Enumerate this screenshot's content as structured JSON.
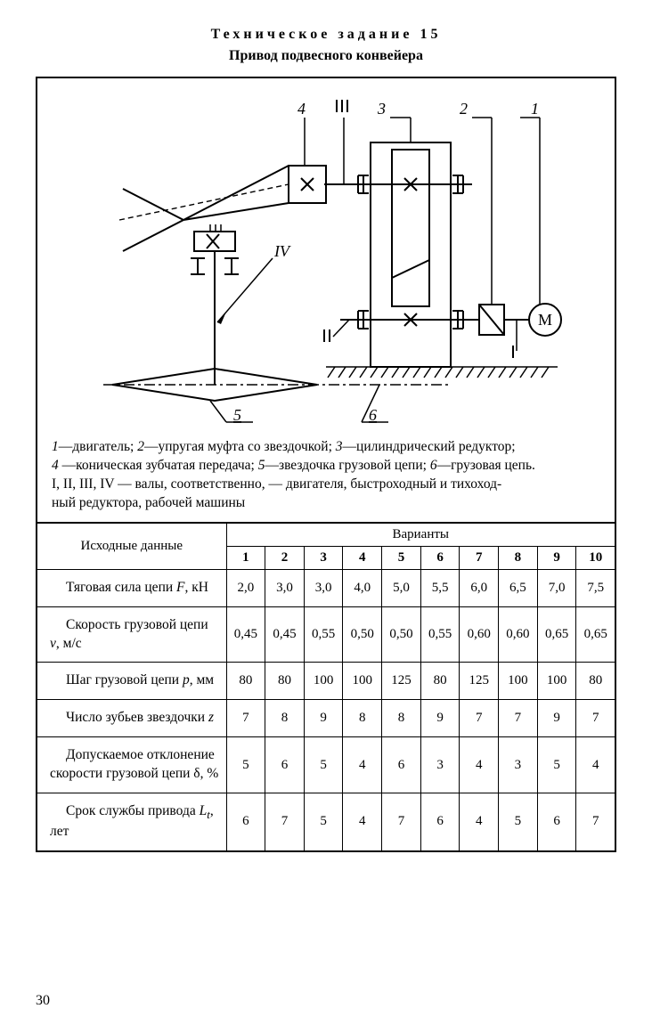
{
  "heading": "Техническое задание 15",
  "subheading": "Привод подвесного конвейера",
  "page_number": "30",
  "diagram": {
    "stroke": "#000000",
    "stroke_width": 2,
    "labels": [
      "1",
      "2",
      "3",
      "4",
      "5",
      "6",
      "I",
      "II",
      "III",
      "IV",
      "М"
    ],
    "hatch_spacing": 8
  },
  "caption": {
    "l1_a": "1",
    "l1_b": "—двигатель; ",
    "l1_c": "2",
    "l1_d": "—упругая муфта со звездочкой; ",
    "l1_e": "3",
    "l1_f": "—цилиндрический редуктор;",
    "l2_a": "4",
    "l2_b": " —коническая зубчатая передача; ",
    "l2_c": "5",
    "l2_d": "—звездочка грузовой цепи; ",
    "l2_e": "6",
    "l2_f": "—грузовая цепь.",
    "l3": "I, II, III, IV — валы, соответственно, — двигателя, быстроходный и тихоход-",
    "l4": "ный редуктора, рабочей машины"
  },
  "table": {
    "row_header_title": "Исходные данные",
    "variants_title": "Варианты",
    "variant_numbers": [
      "1",
      "2",
      "3",
      "4",
      "5",
      "6",
      "7",
      "8",
      "9",
      "10"
    ],
    "rows": [
      {
        "label_html": "<span class=\"indent\"></span>Тяговая сила цепи <i>F</i>, кН",
        "values": [
          "2,0",
          "3,0",
          "3,0",
          "4,0",
          "5,0",
          "5,5",
          "6,0",
          "6,5",
          "7,0",
          "7,5"
        ]
      },
      {
        "label_html": "<span class=\"indent\"></span>Скорость грузовой цепи <i>v</i>, м/с",
        "values": [
          "0,45",
          "0,45",
          "0,55",
          "0,50",
          "0,50",
          "0,55",
          "0,60",
          "0,60",
          "0,65",
          "0,65"
        ]
      },
      {
        "label_html": "<span class=\"indent\"></span>Шаг грузовой цепи <i>p</i>, мм",
        "values": [
          "80",
          "80",
          "100",
          "100",
          "125",
          "80",
          "125",
          "100",
          "100",
          "80"
        ]
      },
      {
        "label_html": "<span class=\"indent\"></span>Число зубьев звездочки <i>z</i>",
        "values": [
          "7",
          "8",
          "9",
          "8",
          "8",
          "9",
          "7",
          "7",
          "9",
          "7"
        ]
      },
      {
        "label_html": "<span class=\"indent\"></span>Допускаемое отклоне­ние скорости грузовой цепи δ, %",
        "values": [
          "5",
          "6",
          "5",
          "4",
          "6",
          "3",
          "4",
          "3",
          "5",
          "4"
        ]
      },
      {
        "label_html": "<span class=\"indent\"></span>Срок службы привода <i>L<sub>t</sub></i>, лет",
        "values": [
          "6",
          "7",
          "5",
          "4",
          "7",
          "6",
          "4",
          "5",
          "6",
          "7"
        ]
      }
    ]
  }
}
